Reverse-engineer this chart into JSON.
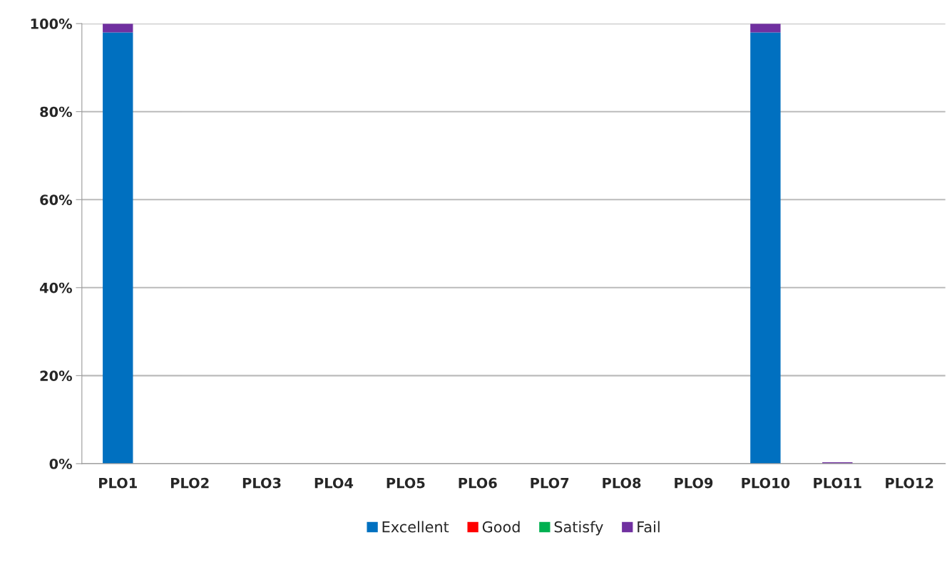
{
  "chart_data": {
    "type": "bar",
    "stacked": true,
    "categories": [
      "PLO1",
      "PLO2",
      "PLO3",
      "PLO4",
      "PLO5",
      "PLO6",
      "PLO7",
      "PLO8",
      "PLO9",
      "PLO10",
      "PLO11",
      "PLO12"
    ],
    "series": [
      {
        "name": "Excellent",
        "color": "#0070c0",
        "values": [
          98,
          0,
          0,
          0,
          0,
          0,
          0,
          0,
          0,
          98,
          0,
          0
        ]
      },
      {
        "name": "Good",
        "color": "#ff0000",
        "values": [
          0,
          0,
          0,
          0,
          0,
          0,
          0,
          0,
          0,
          0,
          0,
          0
        ]
      },
      {
        "name": "Satisfy",
        "color": "#00b050",
        "values": [
          0,
          0,
          0,
          0,
          0,
          0,
          0,
          0,
          0,
          0,
          0,
          0
        ]
      },
      {
        "name": "Fail",
        "color": "#7030a0",
        "values": [
          2,
          0,
          0,
          0,
          0,
          0,
          0,
          0,
          0,
          2,
          0.3,
          0
        ]
      }
    ],
    "ylim": [
      0,
      100
    ],
    "yticks": [
      {
        "value": 0,
        "label": "0%"
      },
      {
        "value": 20,
        "label": "20%"
      },
      {
        "value": 40,
        "label": "40%"
      },
      {
        "value": 60,
        "label": "60%"
      },
      {
        "value": 80,
        "label": "80%"
      },
      {
        "value": 100,
        "label": "100%"
      }
    ],
    "grid": "y",
    "legend": "bottom"
  }
}
